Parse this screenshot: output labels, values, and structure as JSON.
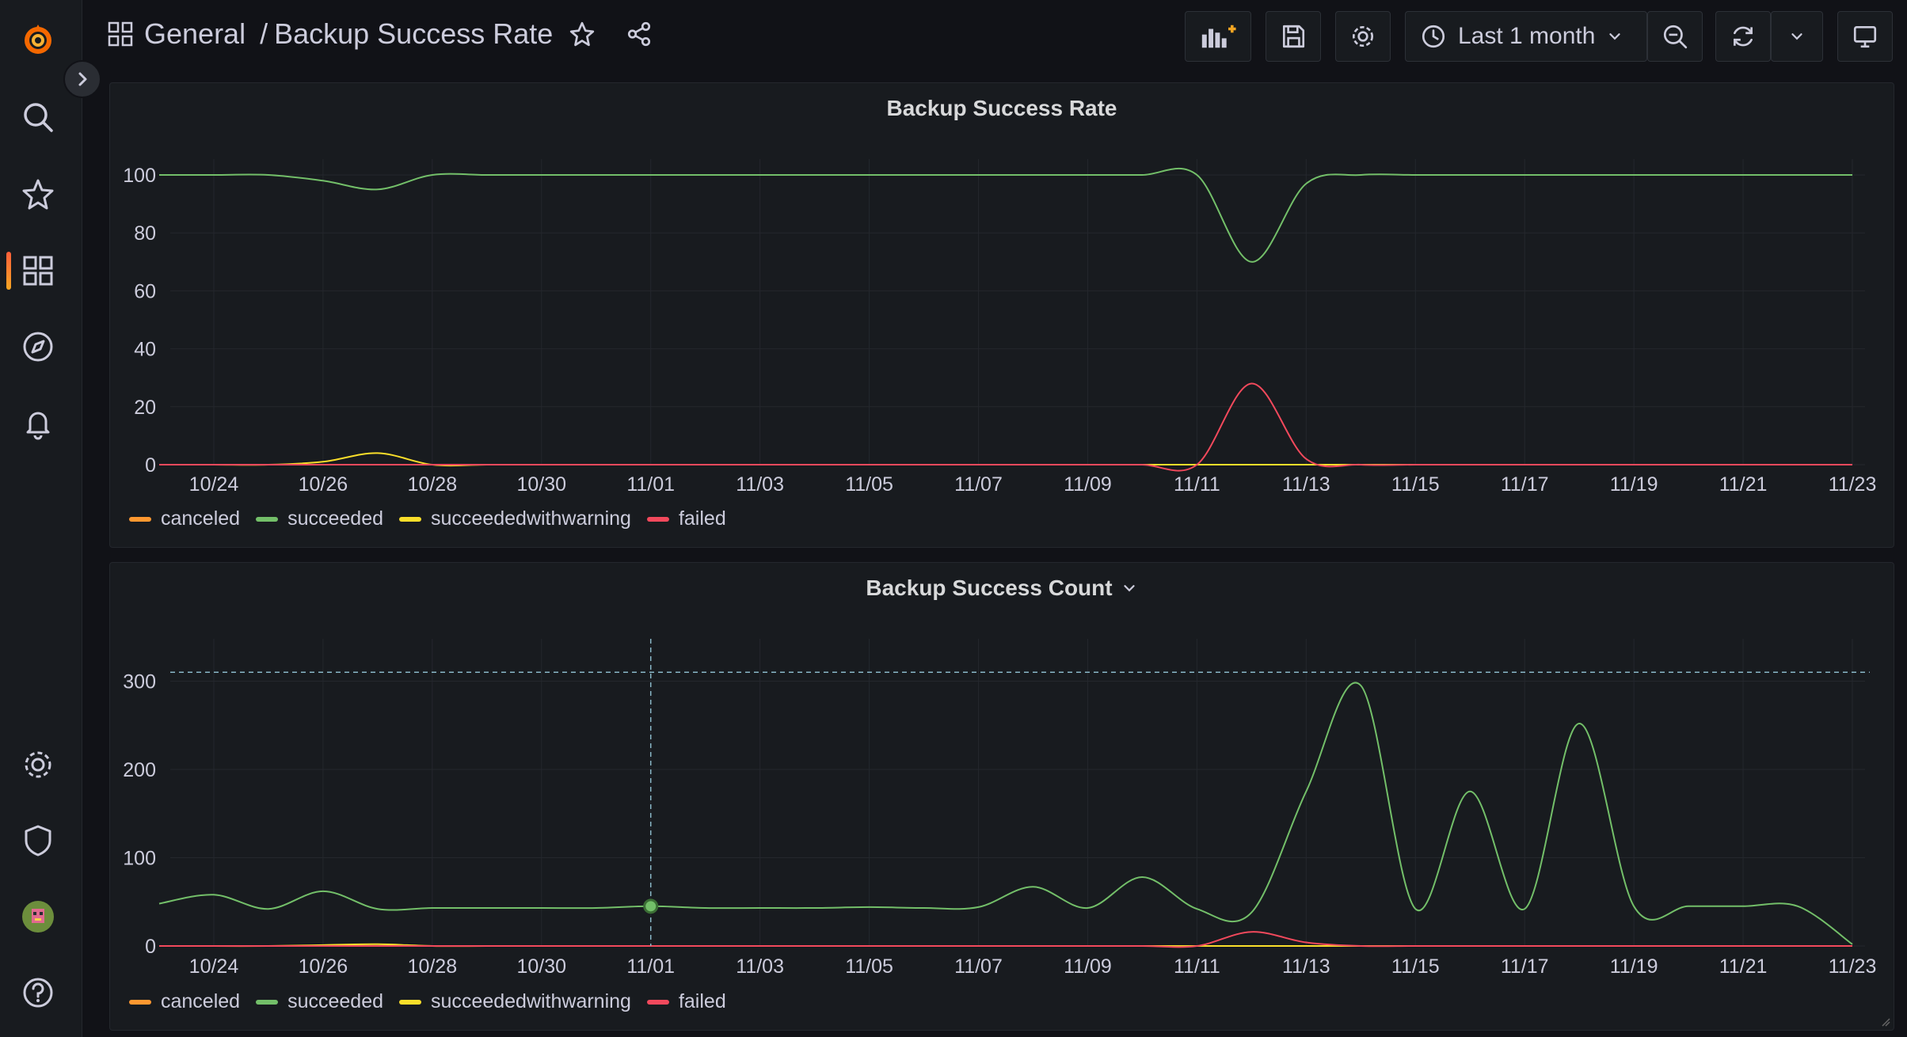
{
  "breadcrumb": {
    "folder": "General",
    "separator": "/",
    "title": "Backup Success Rate"
  },
  "time_picker": {
    "label": "Last 1 month"
  },
  "colors": {
    "canceled": "#ff9830",
    "succeeded": "#73bf69",
    "succeededwithwarning": "#fade2a",
    "failed": "#f2495c",
    "brand": "#f46800"
  },
  "panels": [
    {
      "title": "Backup Success Rate"
    },
    {
      "title": "Backup Success Count"
    }
  ],
  "chart_data": [
    {
      "type": "line",
      "title": "Backup Success Rate",
      "x": [
        "10/23",
        "10/24",
        "10/25",
        "10/26",
        "10/27",
        "10/28",
        "10/29",
        "10/30",
        "10/31",
        "11/01",
        "11/02",
        "11/03",
        "11/04",
        "11/05",
        "11/06",
        "11/07",
        "11/08",
        "11/09",
        "11/10",
        "11/11",
        "11/12",
        "11/13",
        "11/14",
        "11/15",
        "11/16",
        "11/17",
        "11/18",
        "11/19",
        "11/20",
        "11/21",
        "11/22",
        "11/23"
      ],
      "tick_labels": [
        "10/24",
        "10/26",
        "10/28",
        "10/30",
        "11/01",
        "11/03",
        "11/05",
        "11/07",
        "11/09",
        "11/11",
        "11/13",
        "11/15",
        "11/17",
        "11/19",
        "11/21",
        "11/23"
      ],
      "yticks": [
        0,
        20,
        40,
        60,
        80,
        100
      ],
      "ylim": [
        0,
        100
      ],
      "series": [
        {
          "name": "canceled",
          "values": [
            0,
            0,
            0,
            0,
            0,
            0,
            0,
            0,
            0,
            0,
            0,
            0,
            0,
            0,
            0,
            0,
            0,
            0,
            0,
            0,
            0,
            0,
            0,
            0,
            0,
            0,
            0,
            0,
            0,
            0,
            0,
            0
          ]
        },
        {
          "name": "succeeded",
          "values": [
            100,
            100,
            100,
            98,
            95,
            100,
            100,
            100,
            100,
            100,
            100,
            100,
            100,
            100,
            100,
            100,
            100,
            100,
            100,
            100,
            70,
            97,
            100,
            100,
            100,
            100,
            100,
            100,
            100,
            100,
            100,
            100
          ]
        },
        {
          "name": "succeededwithwarning",
          "values": [
            0,
            0,
            0,
            1,
            4,
            0,
            0,
            0,
            0,
            0,
            0,
            0,
            0,
            0,
            0,
            0,
            0,
            0,
            0,
            0,
            0,
            0,
            0,
            0,
            0,
            0,
            0,
            0,
            0,
            0,
            0,
            0
          ]
        },
        {
          "name": "failed",
          "values": [
            0,
            0,
            0,
            0,
            0,
            0,
            0,
            0,
            0,
            0,
            0,
            0,
            0,
            0,
            0,
            0,
            0,
            0,
            0,
            0,
            28,
            2,
            0,
            0,
            0,
            0,
            0,
            0,
            0,
            0,
            0,
            0
          ]
        }
      ]
    },
    {
      "type": "line",
      "title": "Backup Success Count",
      "x": [
        "10/23",
        "10/24",
        "10/25",
        "10/26",
        "10/27",
        "10/28",
        "10/29",
        "10/30",
        "10/31",
        "11/01",
        "11/02",
        "11/03",
        "11/04",
        "11/05",
        "11/06",
        "11/07",
        "11/08",
        "11/09",
        "11/10",
        "11/11",
        "11/12",
        "11/13",
        "11/14",
        "11/15",
        "11/16",
        "11/17",
        "11/18",
        "11/19",
        "11/20",
        "11/21",
        "11/22",
        "11/23"
      ],
      "tick_labels": [
        "10/24",
        "10/26",
        "10/28",
        "10/30",
        "11/01",
        "11/03",
        "11/05",
        "11/07",
        "11/09",
        "11/11",
        "11/13",
        "11/15",
        "11/17",
        "11/19",
        "11/21",
        "11/23"
      ],
      "yticks": [
        0,
        100,
        200,
        300
      ],
      "ylim": [
        0,
        330
      ],
      "threshold": 310,
      "hover_x": "11/01",
      "series": [
        {
          "name": "canceled",
          "values": [
            0,
            0,
            0,
            0,
            0,
            0,
            0,
            0,
            0,
            0,
            0,
            0,
            0,
            0,
            0,
            0,
            0,
            0,
            0,
            0,
            0,
            0,
            0,
            0,
            0,
            0,
            0,
            0,
            0,
            0,
            0,
            0
          ]
        },
        {
          "name": "succeeded",
          "values": [
            48,
            58,
            42,
            62,
            42,
            43,
            43,
            43,
            43,
            45,
            43,
            43,
            43,
            44,
            43,
            44,
            67,
            43,
            78,
            42,
            38,
            175,
            295,
            42,
            175,
            42,
            252,
            45,
            45,
            45,
            45,
            2
          ]
        },
        {
          "name": "succeededwithwarning",
          "values": [
            0,
            0,
            0,
            1,
            2,
            0,
            0,
            0,
            0,
            0,
            0,
            0,
            0,
            0,
            0,
            0,
            0,
            0,
            0,
            0,
            0,
            0,
            0,
            0,
            0,
            0,
            0,
            0,
            0,
            0,
            0,
            0
          ]
        },
        {
          "name": "failed",
          "values": [
            0,
            0,
            0,
            0,
            0,
            0,
            0,
            0,
            0,
            0,
            0,
            0,
            0,
            0,
            0,
            0,
            0,
            0,
            0,
            0,
            16,
            4,
            0,
            0,
            0,
            0,
            0,
            0,
            0,
            0,
            0,
            0
          ]
        }
      ]
    }
  ],
  "legend": [
    "canceled",
    "succeeded",
    "succeededwithwarning",
    "failed"
  ]
}
